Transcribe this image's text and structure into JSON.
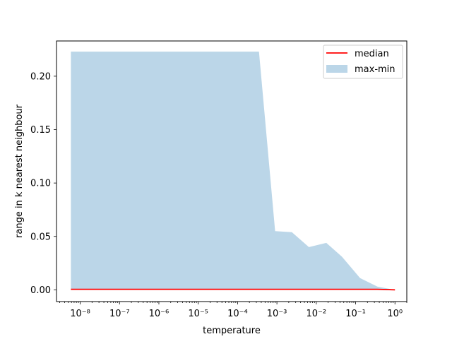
{
  "chart_data": {
    "type": "area",
    "xscale": "log",
    "xlabel": "temperature",
    "ylabel": "range in k nearest neighbour",
    "xlim": [
      2.5e-09,
      2.0
    ],
    "ylim": [
      -0.011,
      0.233
    ],
    "x_ticks": [
      {
        "value": 1e-08,
        "label": "10⁻⁸"
      },
      {
        "value": 1e-07,
        "label": "10⁻⁷"
      },
      {
        "value": 1e-06,
        "label": "10⁻⁶"
      },
      {
        "value": 1e-05,
        "label": "10⁻⁵"
      },
      {
        "value": 0.0001,
        "label": "10⁻⁴"
      },
      {
        "value": 0.001,
        "label": "10⁻³"
      },
      {
        "value": 0.01,
        "label": "10⁻²"
      },
      {
        "value": 0.1,
        "label": "10⁻¹"
      },
      {
        "value": 1,
        "label": "10⁰"
      }
    ],
    "y_ticks": [
      {
        "value": 0.0,
        "label": "0.00"
      },
      {
        "value": 0.05,
        "label": "0.05"
      },
      {
        "value": 0.1,
        "label": "0.10"
      },
      {
        "value": 0.15,
        "label": "0.15"
      },
      {
        "value": 0.2,
        "label": "0.20"
      }
    ],
    "legend": {
      "position": "top-right",
      "entries": [
        {
          "label": "median",
          "kind": "line",
          "color": "#ff0000"
        },
        {
          "label": "max-min",
          "kind": "patch",
          "color": "#1f77b4",
          "alpha": 0.3
        }
      ]
    },
    "series": [
      {
        "name": "median",
        "kind": "line",
        "color": "#ff0000",
        "x": [
          5.8e-09,
          0.00035,
          0.0009,
          0.0024,
          0.0065,
          0.018,
          0.045,
          0.13,
          0.36,
          1.0
        ],
        "y": [
          0.0005,
          0.0005,
          0.0005,
          0.0005,
          0.0005,
          0.0005,
          0.0005,
          0.0005,
          0.0005,
          0.0
        ]
      },
      {
        "name": "max-min",
        "kind": "band",
        "color": "#1f77b4",
        "alpha": 0.3,
        "x": [
          5.8e-09,
          0.00035,
          0.0009,
          0.0024,
          0.0065,
          0.018,
          0.045,
          0.13,
          0.36,
          1.0
        ],
        "upper": [
          0.223,
          0.223,
          0.055,
          0.054,
          0.04,
          0.044,
          0.031,
          0.011,
          0.003,
          0.0
        ],
        "lower": [
          0.0,
          0.0,
          0.0,
          0.0,
          0.0,
          0.0,
          0.0,
          0.0,
          0.0,
          0.0
        ]
      }
    ]
  }
}
